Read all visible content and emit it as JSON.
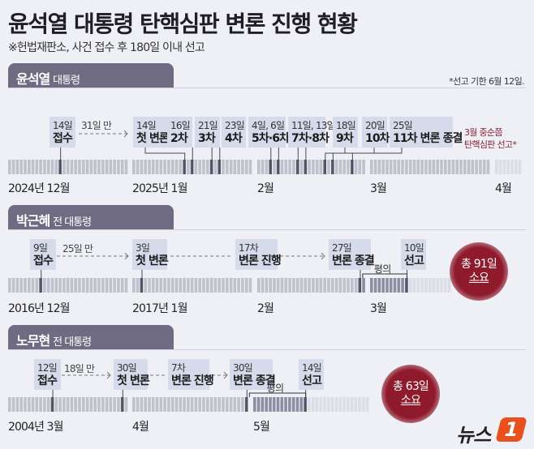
{
  "title": "윤석열 대통령 탄핵심판 변론 진행 현황",
  "subtitle": "※헌법재판소, 사건 접수 후 180일 이내 선고",
  "colors": {
    "tab": "#6f6b82",
    "box": "#d5dbea",
    "circle": "#8e1a2c",
    "forecast": "#8a2030",
    "logo_accent": "#e8501e"
  },
  "timelines": [
    {
      "name": "윤석열",
      "role": "대통령",
      "note": "*선고 기한 6월 12일.",
      "gap_label": "31일 만",
      "forecast": [
        "3월 중순쯤",
        "탄핵심판 선고*"
      ],
      "months": [
        "2024년 12월",
        "2025년 1월",
        "2월",
        "3월",
        "4월"
      ],
      "events": [
        {
          "top": "14일",
          "bottom": "접수",
          "ticks": [
            [
              0,
              14
            ]
          ]
        },
        {
          "top": "14일",
          "bottom": "첫 변론",
          "ticks": [
            [
              1,
              14
            ]
          ]
        },
        {
          "top": "16일",
          "bottom": "2차",
          "ticks": [
            [
              1,
              16
            ]
          ]
        },
        {
          "top": "21일",
          "bottom": "3차",
          "ticks": [
            [
              1,
              21
            ]
          ]
        },
        {
          "top": "23일",
          "bottom": "4차",
          "ticks": [
            [
              1,
              23
            ]
          ]
        },
        {
          "top": "4일, 6일",
          "bottom": "5차·6차",
          "ticks": [
            [
              2,
              4
            ],
            [
              2,
              6
            ]
          ]
        },
        {
          "top": "11일, 13일",
          "bottom": "7차·8차",
          "ticks": [
            [
              2,
              11
            ],
            [
              2,
              13
            ]
          ]
        },
        {
          "top": "18일",
          "bottom": "9차",
          "ticks": [
            [
              2,
              18
            ]
          ]
        },
        {
          "top": "20일",
          "bottom": "10차",
          "ticks": [
            [
              2,
              20
            ]
          ]
        },
        {
          "top": "25일",
          "bottom": "11차 변론 종결",
          "ticks": [
            [
              2,
              25
            ]
          ]
        }
      ]
    },
    {
      "name": "박근혜",
      "role": "전 대통령",
      "gap_label": "25일 만",
      "deliberation_label": "평의",
      "total": [
        "총 91일",
        "소요"
      ],
      "months": [
        "2016년 12월",
        "2017년 1월",
        "2월",
        "3월"
      ],
      "events": [
        {
          "top": "9일",
          "bottom": "접수",
          "ticks": [
            [
              0,
              9
            ]
          ]
        },
        {
          "top": "3일",
          "bottom": "첫 변론",
          "ticks": [
            [
              1,
              3
            ]
          ]
        },
        {
          "top": "17차",
          "bottom": "변론 진행",
          "ticks": []
        },
        {
          "top": "27일",
          "bottom": "변론 종결",
          "ticks": [
            [
              2,
              27
            ]
          ]
        },
        {
          "top": "10일",
          "bottom": "선고",
          "ticks": [
            [
              3,
              10
            ]
          ]
        }
      ]
    },
    {
      "name": "노무현",
      "role": "전 대통령",
      "gap_label": "18일 만",
      "deliberation_label": "평의",
      "total": [
        "총 63일",
        "소요"
      ],
      "months": [
        "2004년 3월",
        "4월",
        "5월"
      ],
      "events": [
        {
          "top": "12일",
          "bottom": "접수",
          "ticks": [
            [
              0,
              12
            ]
          ]
        },
        {
          "top": "30일",
          "bottom": "첫 변론",
          "ticks": [
            [
              0,
              30
            ]
          ]
        },
        {
          "top": "7차",
          "bottom": "변론 진행",
          "ticks": []
        },
        {
          "top": "30일",
          "bottom": "변론 종결",
          "ticks": [
            [
              1,
              30
            ]
          ]
        },
        {
          "top": "14일",
          "bottom": "선고",
          "ticks": [
            [
              2,
              14
            ]
          ]
        }
      ]
    }
  ],
  "logo": "뉴스1"
}
